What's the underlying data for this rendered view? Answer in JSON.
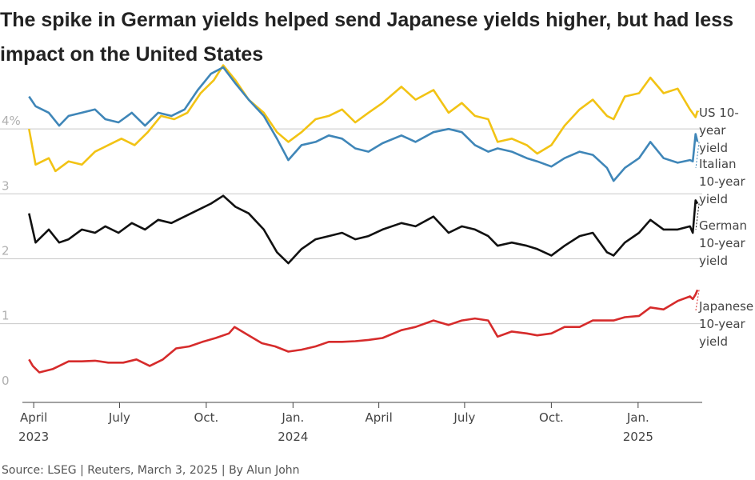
{
  "title": "The spike in German yields helped send Japanese yields higher, but had less impact on the United States",
  "source": "Source: LSEG | Reuters, March 3, 2025 | By Alun John",
  "chart_data": {
    "type": "line",
    "x_range": [
      "2023-03-20",
      "2025-03-10"
    ],
    "ylim": [
      -0.2,
      5.0
    ],
    "yticks": [
      {
        "value": 0,
        "label": "0"
      },
      {
        "value": 1,
        "label": "1"
      },
      {
        "value": 2,
        "label": "2"
      },
      {
        "value": 3,
        "label": "3"
      },
      {
        "value": 4,
        "label": "4%"
      }
    ],
    "xticks": [
      {
        "date": "2023-04-01",
        "label": "April",
        "year": "2023"
      },
      {
        "date": "2023-07-01",
        "label": "July",
        "year": ""
      },
      {
        "date": "2023-10-01",
        "label": "Oct.",
        "year": ""
      },
      {
        "date": "2024-01-01",
        "label": "Jan.",
        "year": "2024"
      },
      {
        "date": "2024-04-01",
        "label": "April",
        "year": ""
      },
      {
        "date": "2024-07-01",
        "label": "July",
        "year": ""
      },
      {
        "date": "2024-10-01",
        "label": "Oct.",
        "year": ""
      },
      {
        "date": "2025-01-01",
        "label": "Jan.",
        "year": "2025"
      }
    ],
    "grid": true,
    "series": [
      {
        "name": "US 10-year yield",
        "label_lines": [
          "US 10-",
          "year",
          "yield"
        ],
        "color": "#f2c314",
        "points": [
          [
            "2023-03-27",
            4.0
          ],
          [
            "2023-04-03",
            3.45
          ],
          [
            "2023-04-17",
            3.55
          ],
          [
            "2023-04-24",
            3.35
          ],
          [
            "2023-05-08",
            3.5
          ],
          [
            "2023-05-22",
            3.45
          ],
          [
            "2023-06-05",
            3.65
          ],
          [
            "2023-06-19",
            3.75
          ],
          [
            "2023-07-03",
            3.85
          ],
          [
            "2023-07-17",
            3.75
          ],
          [
            "2023-07-31",
            3.95
          ],
          [
            "2023-08-14",
            4.2
          ],
          [
            "2023-08-28",
            4.15
          ],
          [
            "2023-09-11",
            4.25
          ],
          [
            "2023-09-25",
            4.55
          ],
          [
            "2023-10-09",
            4.75
          ],
          [
            "2023-10-19",
            4.98
          ],
          [
            "2023-11-01",
            4.75
          ],
          [
            "2023-11-15",
            4.45
          ],
          [
            "2023-12-01",
            4.25
          ],
          [
            "2023-12-15",
            3.95
          ],
          [
            "2023-12-27",
            3.8
          ],
          [
            "2024-01-10",
            3.95
          ],
          [
            "2024-01-25",
            4.15
          ],
          [
            "2024-02-08",
            4.2
          ],
          [
            "2024-02-22",
            4.3
          ],
          [
            "2024-03-07",
            4.1
          ],
          [
            "2024-03-21",
            4.25
          ],
          [
            "2024-04-05",
            4.4
          ],
          [
            "2024-04-25",
            4.65
          ],
          [
            "2024-05-10",
            4.45
          ],
          [
            "2024-05-29",
            4.6
          ],
          [
            "2024-06-14",
            4.25
          ],
          [
            "2024-06-28",
            4.4
          ],
          [
            "2024-07-12",
            4.2
          ],
          [
            "2024-07-26",
            4.15
          ],
          [
            "2024-08-05",
            3.8
          ],
          [
            "2024-08-20",
            3.85
          ],
          [
            "2024-09-05",
            3.75
          ],
          [
            "2024-09-16",
            3.62
          ],
          [
            "2024-10-01",
            3.75
          ],
          [
            "2024-10-15",
            4.05
          ],
          [
            "2024-10-31",
            4.3
          ],
          [
            "2024-11-14",
            4.45
          ],
          [
            "2024-11-29",
            4.2
          ],
          [
            "2024-12-06",
            4.15
          ],
          [
            "2024-12-18",
            4.5
          ],
          [
            "2025-01-02",
            4.55
          ],
          [
            "2025-01-14",
            4.79
          ],
          [
            "2025-01-28",
            4.55
          ],
          [
            "2025-02-12",
            4.62
          ],
          [
            "2025-02-25",
            4.3
          ],
          [
            "2025-03-03",
            4.18
          ],
          [
            "2025-03-05",
            4.28
          ]
        ]
      },
      {
        "name": "Italian 10-year yield",
        "label_lines": [
          "Italian",
          "10-year",
          "yield"
        ],
        "color": "#3f86b8",
        "points": [
          [
            "2023-03-27",
            4.5
          ],
          [
            "2023-04-03",
            4.35
          ],
          [
            "2023-04-17",
            4.25
          ],
          [
            "2023-04-28",
            4.05
          ],
          [
            "2023-05-08",
            4.2
          ],
          [
            "2023-05-22",
            4.25
          ],
          [
            "2023-06-05",
            4.3
          ],
          [
            "2023-06-16",
            4.15
          ],
          [
            "2023-06-30",
            4.1
          ],
          [
            "2023-07-14",
            4.25
          ],
          [
            "2023-07-28",
            4.05
          ],
          [
            "2023-08-11",
            4.25
          ],
          [
            "2023-08-25",
            4.2
          ],
          [
            "2023-09-08",
            4.3
          ],
          [
            "2023-09-22",
            4.6
          ],
          [
            "2023-10-06",
            4.85
          ],
          [
            "2023-10-19",
            4.95
          ],
          [
            "2023-11-01",
            4.7
          ],
          [
            "2023-11-15",
            4.45
          ],
          [
            "2023-12-01",
            4.2
          ],
          [
            "2023-12-15",
            3.85
          ],
          [
            "2023-12-27",
            3.52
          ],
          [
            "2024-01-10",
            3.75
          ],
          [
            "2024-01-25",
            3.8
          ],
          [
            "2024-02-08",
            3.9
          ],
          [
            "2024-02-22",
            3.85
          ],
          [
            "2024-03-07",
            3.7
          ],
          [
            "2024-03-21",
            3.65
          ],
          [
            "2024-04-05",
            3.78
          ],
          [
            "2024-04-25",
            3.9
          ],
          [
            "2024-05-10",
            3.8
          ],
          [
            "2024-05-29",
            3.95
          ],
          [
            "2024-06-14",
            4.0
          ],
          [
            "2024-06-28",
            3.95
          ],
          [
            "2024-07-12",
            3.75
          ],
          [
            "2024-07-26",
            3.65
          ],
          [
            "2024-08-05",
            3.7
          ],
          [
            "2024-08-20",
            3.65
          ],
          [
            "2024-09-05",
            3.55
          ],
          [
            "2024-09-16",
            3.5
          ],
          [
            "2024-10-01",
            3.42
          ],
          [
            "2024-10-15",
            3.55
          ],
          [
            "2024-10-31",
            3.65
          ],
          [
            "2024-11-14",
            3.6
          ],
          [
            "2024-11-29",
            3.4
          ],
          [
            "2024-12-06",
            3.2
          ],
          [
            "2024-12-18",
            3.4
          ],
          [
            "2025-01-02",
            3.55
          ],
          [
            "2025-01-14",
            3.8
          ],
          [
            "2025-01-28",
            3.55
          ],
          [
            "2025-02-12",
            3.48
          ],
          [
            "2025-02-25",
            3.52
          ],
          [
            "2025-02-28",
            3.5
          ],
          [
            "2025-03-03",
            3.92
          ],
          [
            "2025-03-05",
            3.8
          ]
        ]
      },
      {
        "name": "German 10-year yield",
        "label_lines": [
          "German",
          "10-year",
          "yield"
        ],
        "color": "#111111",
        "points": [
          [
            "2023-03-27",
            2.7
          ],
          [
            "2023-04-03",
            2.25
          ],
          [
            "2023-04-17",
            2.45
          ],
          [
            "2023-04-28",
            2.25
          ],
          [
            "2023-05-08",
            2.3
          ],
          [
            "2023-05-22",
            2.45
          ],
          [
            "2023-06-05",
            2.4
          ],
          [
            "2023-06-16",
            2.5
          ],
          [
            "2023-06-30",
            2.4
          ],
          [
            "2023-07-14",
            2.55
          ],
          [
            "2023-07-28",
            2.45
          ],
          [
            "2023-08-11",
            2.6
          ],
          [
            "2023-08-25",
            2.55
          ],
          [
            "2023-09-08",
            2.65
          ],
          [
            "2023-09-22",
            2.75
          ],
          [
            "2023-10-06",
            2.85
          ],
          [
            "2023-10-19",
            2.97
          ],
          [
            "2023-11-01",
            2.8
          ],
          [
            "2023-11-15",
            2.7
          ],
          [
            "2023-12-01",
            2.45
          ],
          [
            "2023-12-15",
            2.1
          ],
          [
            "2023-12-27",
            1.93
          ],
          [
            "2024-01-10",
            2.15
          ],
          [
            "2024-01-25",
            2.3
          ],
          [
            "2024-02-08",
            2.35
          ],
          [
            "2024-02-22",
            2.4
          ],
          [
            "2024-03-07",
            2.3
          ],
          [
            "2024-03-21",
            2.35
          ],
          [
            "2024-04-05",
            2.45
          ],
          [
            "2024-04-25",
            2.55
          ],
          [
            "2024-05-10",
            2.5
          ],
          [
            "2024-05-29",
            2.65
          ],
          [
            "2024-06-14",
            2.4
          ],
          [
            "2024-06-28",
            2.5
          ],
          [
            "2024-07-12",
            2.45
          ],
          [
            "2024-07-26",
            2.35
          ],
          [
            "2024-08-05",
            2.2
          ],
          [
            "2024-08-20",
            2.25
          ],
          [
            "2024-09-05",
            2.2
          ],
          [
            "2024-09-16",
            2.15
          ],
          [
            "2024-10-01",
            2.05
          ],
          [
            "2024-10-15",
            2.2
          ],
          [
            "2024-10-31",
            2.35
          ],
          [
            "2024-11-14",
            2.4
          ],
          [
            "2024-11-29",
            2.1
          ],
          [
            "2024-12-06",
            2.05
          ],
          [
            "2024-12-18",
            2.25
          ],
          [
            "2025-01-02",
            2.4
          ],
          [
            "2025-01-14",
            2.6
          ],
          [
            "2025-01-28",
            2.45
          ],
          [
            "2025-02-12",
            2.45
          ],
          [
            "2025-02-25",
            2.5
          ],
          [
            "2025-02-28",
            2.4
          ],
          [
            "2025-03-03",
            2.9
          ],
          [
            "2025-03-05",
            2.85
          ]
        ]
      },
      {
        "name": "Japanese 10-year yield",
        "label_lines": [
          "Japanese",
          "10-year",
          "yield"
        ],
        "color": "#d62b2b",
        "points": [
          [
            "2023-03-27",
            0.45
          ],
          [
            "2023-03-31",
            0.35
          ],
          [
            "2023-04-07",
            0.25
          ],
          [
            "2023-04-21",
            0.3
          ],
          [
            "2023-05-08",
            0.42
          ],
          [
            "2023-05-22",
            0.42
          ],
          [
            "2023-06-05",
            0.43
          ],
          [
            "2023-06-19",
            0.4
          ],
          [
            "2023-07-05",
            0.4
          ],
          [
            "2023-07-19",
            0.45
          ],
          [
            "2023-08-02",
            0.35
          ],
          [
            "2023-08-16",
            0.45
          ],
          [
            "2023-08-30",
            0.62
          ],
          [
            "2023-09-13",
            0.65
          ],
          [
            "2023-09-27",
            0.72
          ],
          [
            "2023-10-11",
            0.78
          ],
          [
            "2023-10-25",
            0.85
          ],
          [
            "2023-10-31",
            0.95
          ],
          [
            "2023-11-15",
            0.82
          ],
          [
            "2023-11-29",
            0.7
          ],
          [
            "2023-12-13",
            0.65
          ],
          [
            "2023-12-27",
            0.57
          ],
          [
            "2024-01-10",
            0.6
          ],
          [
            "2024-01-25",
            0.65
          ],
          [
            "2024-02-08",
            0.72
          ],
          [
            "2024-02-22",
            0.72
          ],
          [
            "2024-03-07",
            0.73
          ],
          [
            "2024-03-21",
            0.75
          ],
          [
            "2024-04-05",
            0.78
          ],
          [
            "2024-04-25",
            0.9
          ],
          [
            "2024-05-10",
            0.95
          ],
          [
            "2024-05-29",
            1.05
          ],
          [
            "2024-06-14",
            0.98
          ],
          [
            "2024-06-28",
            1.05
          ],
          [
            "2024-07-12",
            1.08
          ],
          [
            "2024-07-26",
            1.05
          ],
          [
            "2024-08-05",
            0.8
          ],
          [
            "2024-08-20",
            0.88
          ],
          [
            "2024-09-05",
            0.85
          ],
          [
            "2024-09-16",
            0.82
          ],
          [
            "2024-10-01",
            0.85
          ],
          [
            "2024-10-15",
            0.95
          ],
          [
            "2024-10-31",
            0.95
          ],
          [
            "2024-11-14",
            1.05
          ],
          [
            "2024-11-29",
            1.05
          ],
          [
            "2024-12-06",
            1.05
          ],
          [
            "2024-12-18",
            1.1
          ],
          [
            "2025-01-02",
            1.12
          ],
          [
            "2025-01-14",
            1.25
          ],
          [
            "2025-01-28",
            1.22
          ],
          [
            "2025-02-12",
            1.35
          ],
          [
            "2025-02-25",
            1.42
          ],
          [
            "2025-02-28",
            1.38
          ],
          [
            "2025-03-03",
            1.45
          ],
          [
            "2025-03-05",
            1.52
          ]
        ]
      }
    ]
  }
}
